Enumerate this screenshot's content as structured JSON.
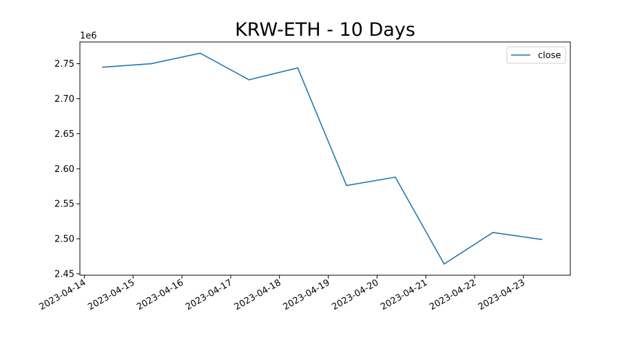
{
  "chart_data": {
    "type": "line",
    "title": "KRW-ETH - 10 Days",
    "xlabel": "",
    "ylabel": "",
    "y_scale_label": "1e6",
    "y_multiplier": 1000000,
    "grid": false,
    "legend_position": "top-right",
    "x_ticks": [
      "2023-04-14",
      "2023-04-15",
      "2023-04-16",
      "2023-04-17",
      "2023-04-18",
      "2023-04-19",
      "2023-04-20",
      "2023-04-21",
      "2023-04-22",
      "2023-04-23"
    ],
    "y_ticks": [
      "2.45",
      "2.50",
      "2.55",
      "2.60",
      "2.65",
      "2.70",
      "2.75"
    ],
    "xlim": [
      "2023-04-13T21:50",
      "2023-04-23T23:05"
    ],
    "ylim": [
      2.448,
      2.781
    ],
    "series": [
      {
        "name": "close",
        "color": "#1f77b4",
        "x": [
          "2023-04-14T09:00",
          "2023-04-15T09:00",
          "2023-04-16T09:00",
          "2023-04-17T09:00",
          "2023-04-18T09:00",
          "2023-04-19T09:00",
          "2023-04-20T09:00",
          "2023-04-21T09:00",
          "2023-04-22T09:00",
          "2023-04-23T09:00"
        ],
        "y": [
          2.745,
          2.75,
          2.765,
          2.727,
          2.744,
          2.576,
          2.588,
          2.464,
          2.509,
          2.499
        ]
      }
    ]
  }
}
